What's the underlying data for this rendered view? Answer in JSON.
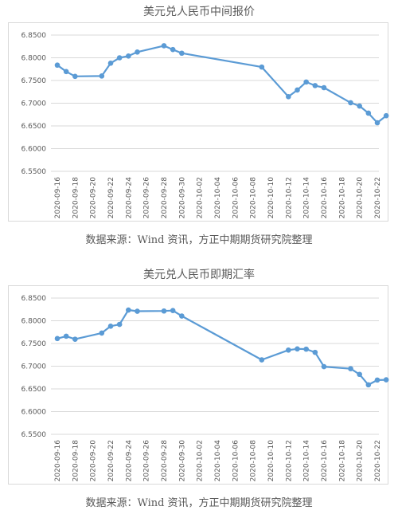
{
  "chart_data": [
    {
      "type": "line",
      "title": "美元兑人民币中间报价",
      "source": "数据来源：Wind 资讯，方正中期期货研究院整理",
      "x_ticks": [
        "2020-09-16",
        "2020-09-18",
        "2020-09-20",
        "2020-09-22",
        "2020-09-24",
        "2020-09-26",
        "2020-09-28",
        "2020-09-30",
        "2020-10-02",
        "2020-10-04",
        "2020-10-06",
        "2020-10-08",
        "2020-10-10",
        "2020-10-12",
        "2020-10-14",
        "2020-10-16",
        "2020-10-18",
        "2020-10-20",
        "2020-10-22"
      ],
      "y_ticks": [
        "6.5500",
        "6.6000",
        "6.6500",
        "6.7000",
        "6.7500",
        "6.8000",
        "6.8500"
      ],
      "ylim": [
        6.55,
        6.85
      ],
      "grid": "horizontal",
      "color": "#5b9bd5",
      "series": [
        {
          "x": [
            "2020-09-16",
            "2020-09-17",
            "2020-09-18",
            "2020-09-21",
            "2020-09-22",
            "2020-09-23",
            "2020-09-24",
            "2020-09-25",
            "2020-09-28",
            "2020-09-29",
            "2020-09-30",
            "2020-10-09",
            "2020-10-12",
            "2020-10-13",
            "2020-10-14",
            "2020-10-15",
            "2020-10-16",
            "2020-10-19",
            "2020-10-20",
            "2020-10-21",
            "2020-10-22",
            "2020-10-23"
          ],
          "values": [
            6.7838,
            6.7696,
            6.7591,
            6.7599,
            6.788,
            6.8,
            6.8039,
            6.8126,
            6.8265,
            6.8181,
            6.8101,
            6.7796,
            6.7143,
            6.729,
            6.7467,
            6.7388,
            6.7342,
            6.701,
            6.6938,
            6.6781,
            6.657,
            6.6725
          ]
        }
      ]
    },
    {
      "type": "line",
      "title": "美元兑人民币即期汇率",
      "source": "数据来源：Wind 资讯，方正中期期货研究院整理",
      "x_ticks": [
        "2020-09-16",
        "2020-09-18",
        "2020-09-20",
        "2020-09-22",
        "2020-09-24",
        "2020-09-26",
        "2020-09-28",
        "2020-09-30",
        "2020-10-02",
        "2020-10-04",
        "2020-10-06",
        "2020-10-08",
        "2020-10-10",
        "2020-10-12",
        "2020-10-14",
        "2020-10-16",
        "2020-10-18",
        "2020-10-20",
        "2020-10-22"
      ],
      "y_ticks": [
        "6.5500",
        "6.6000",
        "6.6500",
        "6.7000",
        "6.7500",
        "6.8000",
        "6.8500"
      ],
      "ylim": [
        6.55,
        6.85
      ],
      "grid": "horizontal",
      "color": "#5b9bd5",
      "series": [
        {
          "x": [
            "2020-09-16",
            "2020-09-17",
            "2020-09-18",
            "2020-09-21",
            "2020-09-22",
            "2020-09-23",
            "2020-09-24",
            "2020-09-25",
            "2020-09-28",
            "2020-09-29",
            "2020-09-30",
            "2020-10-09",
            "2020-10-12",
            "2020-10-13",
            "2020-10-14",
            "2020-10-15",
            "2020-10-16",
            "2020-10-19",
            "2020-10-20",
            "2020-10-21",
            "2020-10-22",
            "2020-10-23"
          ],
          "values": [
            6.7608,
            6.766,
            6.7594,
            6.773,
            6.788,
            6.792,
            6.8236,
            6.821,
            6.8215,
            6.8225,
            6.8105,
            6.714,
            6.7355,
            6.738,
            6.7375,
            6.7305,
            6.699,
            6.6945,
            6.682,
            6.659,
            6.6695,
            6.67
          ]
        }
      ]
    }
  ]
}
